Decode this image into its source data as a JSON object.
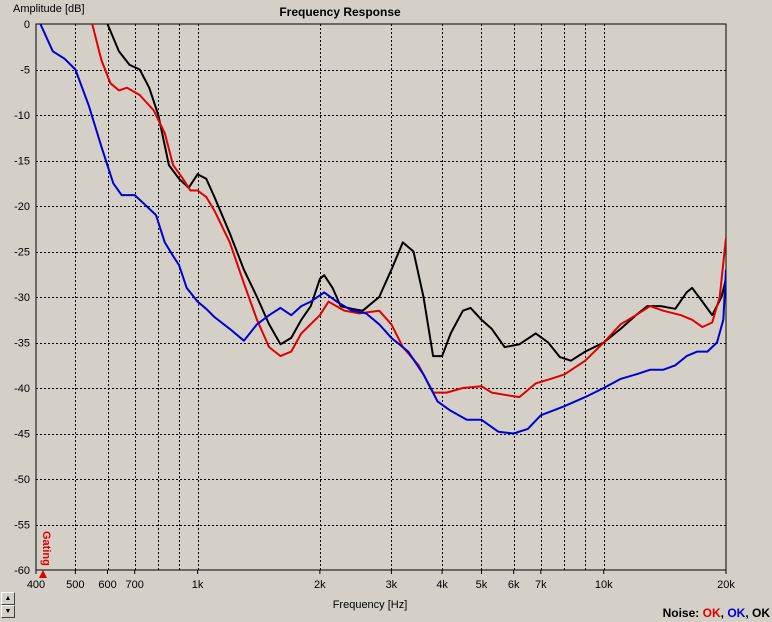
{
  "chart_data": {
    "type": "line",
    "title": "Frequency Response",
    "xlabel": "Frequency [Hz]",
    "ylabel": "Amplitude [dB]",
    "xscale": "log",
    "xlim": [
      400,
      20000
    ],
    "ylim": [
      -60,
      0
    ],
    "grid": true,
    "x_ticks": [
      {
        "value": 400,
        "label": "400"
      },
      {
        "value": 500,
        "label": "500"
      },
      {
        "value": 600,
        "label": "600"
      },
      {
        "value": 700,
        "label": "700"
      },
      {
        "value": 1000,
        "label": "1k"
      },
      {
        "value": 2000,
        "label": "2k"
      },
      {
        "value": 3000,
        "label": "3k"
      },
      {
        "value": 4000,
        "label": "4k"
      },
      {
        "value": 5000,
        "label": "5k"
      },
      {
        "value": 6000,
        "label": "6k"
      },
      {
        "value": 7000,
        "label": "7k"
      },
      {
        "value": 10000,
        "label": "10k"
      },
      {
        "value": 20000,
        "label": "20k"
      }
    ],
    "x_minor_gridlines": [
      800,
      900,
      8000,
      9000
    ],
    "y_ticks": [
      0,
      -5,
      -10,
      -15,
      -20,
      -25,
      -30,
      -35,
      -40,
      -45,
      -50,
      -55,
      -60
    ],
    "annotation": "Gating",
    "series": [
      {
        "color": "#000000",
        "points": [
          [
            600,
            0
          ],
          [
            640,
            -3
          ],
          [
            680,
            -4.5
          ],
          [
            720,
            -5
          ],
          [
            760,
            -7
          ],
          [
            800,
            -10
          ],
          [
            850,
            -15.5
          ],
          [
            900,
            -17
          ],
          [
            950,
            -18
          ],
          [
            1000,
            -16.5
          ],
          [
            1050,
            -17
          ],
          [
            1100,
            -19
          ],
          [
            1200,
            -23
          ],
          [
            1300,
            -27
          ],
          [
            1400,
            -30
          ],
          [
            1500,
            -33
          ],
          [
            1600,
            -35.2
          ],
          [
            1700,
            -34.5
          ],
          [
            1800,
            -32.5
          ],
          [
            1900,
            -31
          ],
          [
            2000,
            -28
          ],
          [
            2050,
            -27.6
          ],
          [
            2150,
            -29
          ],
          [
            2250,
            -31
          ],
          [
            2400,
            -31.3
          ],
          [
            2550,
            -31.5
          ],
          [
            2800,
            -30
          ],
          [
            3000,
            -27
          ],
          [
            3200,
            -24
          ],
          [
            3400,
            -25
          ],
          [
            3600,
            -30
          ],
          [
            3800,
            -36.5
          ],
          [
            4000,
            -36.5
          ],
          [
            4200,
            -34
          ],
          [
            4500,
            -31.5
          ],
          [
            4700,
            -31.2
          ],
          [
            5000,
            -32.5
          ],
          [
            5300,
            -33.5
          ],
          [
            5700,
            -35.5
          ],
          [
            6200,
            -35.2
          ],
          [
            6800,
            -34
          ],
          [
            7300,
            -35
          ],
          [
            7800,
            -36.6
          ],
          [
            8300,
            -37
          ],
          [
            9000,
            -36
          ],
          [
            10000,
            -35
          ],
          [
            11000,
            -33.5
          ],
          [
            12000,
            -32
          ],
          [
            12800,
            -31
          ],
          [
            13800,
            -31
          ],
          [
            15000,
            -31.3
          ],
          [
            16000,
            -29.5
          ],
          [
            16500,
            -29
          ],
          [
            17500,
            -30.5
          ],
          [
            18500,
            -32
          ],
          [
            19500,
            -30
          ],
          [
            20000,
            -28
          ]
        ]
      },
      {
        "color": "#e00000",
        "points": [
          [
            550,
            0
          ],
          [
            580,
            -4
          ],
          [
            610,
            -6.5
          ],
          [
            640,
            -7.3
          ],
          [
            670,
            -7
          ],
          [
            720,
            -7.8
          ],
          [
            780,
            -9.5
          ],
          [
            830,
            -12
          ],
          [
            870,
            -15.5
          ],
          [
            920,
            -17
          ],
          [
            960,
            -18.3
          ],
          [
            1000,
            -18.3
          ],
          [
            1050,
            -19
          ],
          [
            1100,
            -20.5
          ],
          [
            1200,
            -24
          ],
          [
            1300,
            -28.5
          ],
          [
            1400,
            -32.5
          ],
          [
            1500,
            -35.5
          ],
          [
            1600,
            -36.5
          ],
          [
            1700,
            -36
          ],
          [
            1800,
            -34
          ],
          [
            2000,
            -32
          ],
          [
            2100,
            -30.5
          ],
          [
            2300,
            -31.5
          ],
          [
            2500,
            -31.8
          ],
          [
            2800,
            -31.5
          ],
          [
            3000,
            -33
          ],
          [
            3200,
            -35.5
          ],
          [
            3500,
            -37.5
          ],
          [
            3800,
            -40.5
          ],
          [
            4100,
            -40.5
          ],
          [
            4500,
            -40
          ],
          [
            5000,
            -39.8
          ],
          [
            5300,
            -40.5
          ],
          [
            5800,
            -40.8
          ],
          [
            6200,
            -41
          ],
          [
            6800,
            -39.5
          ],
          [
            7400,
            -39
          ],
          [
            8000,
            -38.5
          ],
          [
            9000,
            -37
          ],
          [
            10000,
            -35
          ],
          [
            11000,
            -33
          ],
          [
            12000,
            -32
          ],
          [
            13000,
            -31
          ],
          [
            14000,
            -31.5
          ],
          [
            15500,
            -32
          ],
          [
            16500,
            -32.5
          ],
          [
            17500,
            -33.3
          ],
          [
            18500,
            -32.8
          ],
          [
            19300,
            -30
          ],
          [
            20000,
            -23.5
          ]
        ]
      },
      {
        "color": "#0000d0",
        "points": [
          [
            410,
            0
          ],
          [
            440,
            -3
          ],
          [
            470,
            -3.8
          ],
          [
            500,
            -5
          ],
          [
            540,
            -9
          ],
          [
            580,
            -13.5
          ],
          [
            620,
            -17.5
          ],
          [
            650,
            -18.8
          ],
          [
            700,
            -18.8
          ],
          [
            740,
            -19.8
          ],
          [
            790,
            -21
          ],
          [
            830,
            -24
          ],
          [
            870,
            -25.5
          ],
          [
            900,
            -26.5
          ],
          [
            940,
            -29
          ],
          [
            1000,
            -30.5
          ],
          [
            1050,
            -31.3
          ],
          [
            1100,
            -32.2
          ],
          [
            1200,
            -33.5
          ],
          [
            1300,
            -34.8
          ],
          [
            1400,
            -33
          ],
          [
            1500,
            -32
          ],
          [
            1600,
            -31.2
          ],
          [
            1700,
            -32
          ],
          [
            1800,
            -31
          ],
          [
            1900,
            -30.5
          ],
          [
            2050,
            -29.5
          ],
          [
            2200,
            -30.5
          ],
          [
            2400,
            -31.5
          ],
          [
            2600,
            -31.8
          ],
          [
            2800,
            -33
          ],
          [
            3000,
            -34.5
          ],
          [
            3300,
            -36
          ],
          [
            3600,
            -38.5
          ],
          [
            3900,
            -41.5
          ],
          [
            4200,
            -42.5
          ],
          [
            4600,
            -43.5
          ],
          [
            5000,
            -43.5
          ],
          [
            5500,
            -44.8
          ],
          [
            6000,
            -45
          ],
          [
            6500,
            -44.5
          ],
          [
            7000,
            -43
          ],
          [
            8000,
            -42
          ],
          [
            9000,
            -41
          ],
          [
            10000,
            -40
          ],
          [
            11000,
            -39
          ],
          [
            12000,
            -38.5
          ],
          [
            13000,
            -38
          ],
          [
            14000,
            -38
          ],
          [
            15000,
            -37.5
          ],
          [
            16000,
            -36.5
          ],
          [
            17000,
            -36
          ],
          [
            18000,
            -36
          ],
          [
            19000,
            -35
          ],
          [
            19700,
            -32.5
          ],
          [
            20000,
            -27
          ]
        ]
      }
    ]
  },
  "status": {
    "noise_label": "Noise:",
    "noise_values": [
      "OK",
      "OK",
      "OK"
    ],
    "separator": ","
  }
}
